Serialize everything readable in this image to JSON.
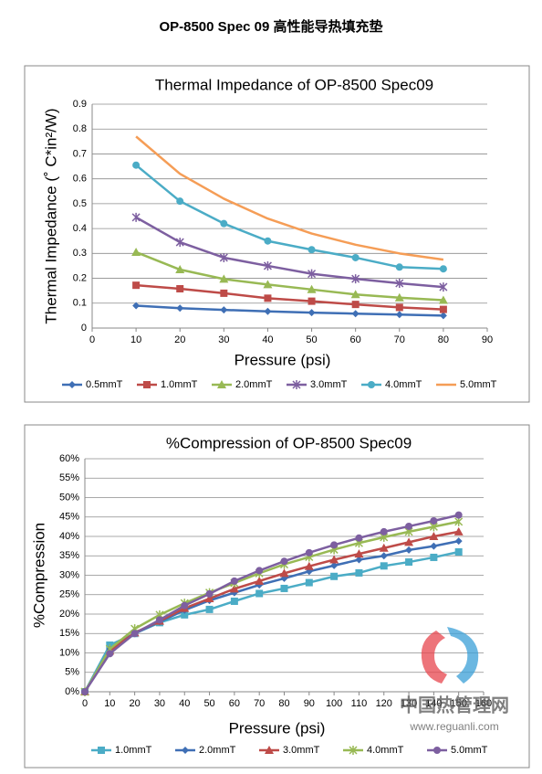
{
  "title": "OP-8500 Spec 09  高性能导热填充垫",
  "watermark": {
    "name": "中国热管理网",
    "url": "www.reguanli.com"
  },
  "chart_data": [
    {
      "type": "line",
      "title": "Thermal Impedance of OP-8500 Spec09",
      "x_label": "Pressure (psi)",
      "y_label": "Thermal Impedance (˚ C*in²/W)",
      "x": [
        10,
        20,
        30,
        40,
        50,
        60,
        70,
        80
      ],
      "xlim": [
        0,
        90
      ],
      "xticks": [
        0,
        10,
        20,
        30,
        40,
        50,
        60,
        70,
        80,
        90
      ],
      "ylim": [
        0,
        0.9
      ],
      "yticks": [
        0,
        0.1,
        0.2,
        0.3,
        0.4,
        0.5,
        0.6,
        0.7,
        0.8,
        0.9
      ],
      "grid": true,
      "legend": "bottom",
      "series": [
        {
          "name": "0.5mmT",
          "color": "#3f6fb5",
          "marker": "diamond",
          "values": [
            0.09,
            0.08,
            0.073,
            0.067,
            0.062,
            0.058,
            0.054,
            0.05
          ]
        },
        {
          "name": "1.0mmT",
          "color": "#be4b48",
          "marker": "square",
          "values": [
            0.172,
            0.158,
            0.14,
            0.12,
            0.108,
            0.095,
            0.083,
            0.075
          ]
        },
        {
          "name": "2.0mmT",
          "color": "#98b954",
          "marker": "triangle",
          "values": [
            0.305,
            0.235,
            0.197,
            0.175,
            0.155,
            0.135,
            0.122,
            0.112
          ]
        },
        {
          "name": "3.0mmT",
          "color": "#7d5fa0",
          "marker": "star",
          "values": [
            0.445,
            0.345,
            0.283,
            0.25,
            0.218,
            0.198,
            0.18,
            0.165
          ]
        },
        {
          "name": "4.0mmT",
          "color": "#4bacc6",
          "marker": "circle",
          "values": [
            0.655,
            0.51,
            0.42,
            0.35,
            0.315,
            0.283,
            0.245,
            0.238
          ]
        },
        {
          "name": "5.0mmT",
          "color": "#f59d56",
          "marker": "none",
          "values": [
            0.77,
            0.62,
            0.52,
            0.44,
            0.38,
            0.335,
            0.3,
            0.275
          ]
        }
      ]
    },
    {
      "type": "line",
      "title": "%Compression of OP-8500 Spec09",
      "x_label": "Pressure (psi)",
      "y_label": "%Compression",
      "x": [
        0,
        10,
        20,
        30,
        40,
        50,
        60,
        70,
        80,
        90,
        100,
        110,
        120,
        130,
        140,
        150
      ],
      "xlim": [
        0,
        160
      ],
      "xticks": [
        0,
        10,
        20,
        30,
        40,
        50,
        60,
        70,
        80,
        90,
        100,
        110,
        120,
        130,
        140,
        150,
        160
      ],
      "ylim": [
        0,
        60
      ],
      "yticks": [
        {
          "value": 0,
          "label": "0%"
        },
        {
          "value": 5,
          "label": "5%"
        },
        {
          "value": 10,
          "label": "10%"
        },
        {
          "value": 15,
          "label": "15%"
        },
        {
          "value": 20,
          "label": "20%"
        },
        {
          "value": 25,
          "label": "25%"
        },
        {
          "value": 30,
          "label": "30%"
        },
        {
          "value": 35,
          "label": "35%"
        },
        {
          "value": 40,
          "label": "40%"
        },
        {
          "value": 45,
          "label": "45%"
        },
        {
          "value": 50,
          "label": "50%"
        },
        {
          "value": 55,
          "label": "55%"
        },
        {
          "value": 60,
          "label": "60%"
        }
      ],
      "grid": true,
      "legend": "bottom",
      "series": [
        {
          "name": "1.0mmT",
          "color": "#4bacc6",
          "marker": "square",
          "values": [
            0,
            12,
            15,
            17.8,
            19.8,
            21.2,
            23.3,
            25.3,
            26.6,
            28.1,
            29.7,
            30.6,
            32.4,
            33.4,
            34.6,
            36
          ]
        },
        {
          "name": "2.0mmT",
          "color": "#3f6fb5",
          "marker": "diamond",
          "values": [
            0,
            11,
            15,
            18,
            21,
            23.5,
            25.5,
            27.5,
            29.2,
            31,
            32.5,
            34,
            35,
            36.5,
            37.5,
            38.8
          ]
        },
        {
          "name": "3.0mmT",
          "color": "#be4b48",
          "marker": "triangle",
          "values": [
            0,
            10.5,
            15.2,
            18.2,
            21.5,
            24,
            26.5,
            28.5,
            30.5,
            32.3,
            34,
            35.5,
            37,
            38.5,
            40,
            41.2
          ]
        },
        {
          "name": "4.0mmT",
          "color": "#98b954",
          "marker": "star",
          "values": [
            0,
            11,
            16.2,
            19.8,
            22.8,
            25.5,
            28,
            30.5,
            32.8,
            34.7,
            36.6,
            38.3,
            39.8,
            41.2,
            42.5,
            43.8
          ]
        },
        {
          "name": "5.0mmT",
          "color": "#7d5fa0",
          "marker": "circle",
          "values": [
            0,
            9.8,
            15,
            18.5,
            22.2,
            25.2,
            28.5,
            31.2,
            33.6,
            35.8,
            37.8,
            39.6,
            41.2,
            42.6,
            44,
            45.5
          ]
        }
      ]
    }
  ]
}
